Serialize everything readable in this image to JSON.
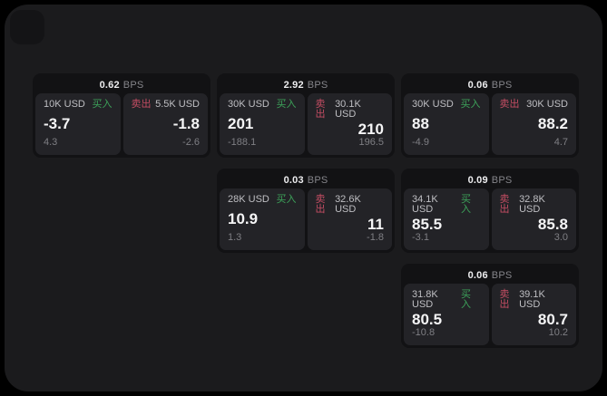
{
  "theme": {
    "outer_bg": "#000000",
    "surface_bg": "#1b1b1d",
    "card_bg": "#121214",
    "panel_bg": "#232327",
    "buy_color": "#3da35a",
    "sell_color": "#c44d63"
  },
  "cards": [
    {
      "bps_value": "0.62",
      "bps_unit": "BPS",
      "grid": {
        "row": 1,
        "col": 1
      },
      "buy": {
        "amount": "10K USD",
        "side_label": "买入",
        "price": "-3.7",
        "change": "4.3"
      },
      "sell": {
        "amount": "5.5K USD",
        "side_label": "卖出",
        "price": "-1.8",
        "change": "-2.6"
      }
    },
    {
      "bps_value": "2.92",
      "bps_unit": "BPS",
      "grid": {
        "row": 1,
        "col": 2
      },
      "buy": {
        "amount": "30K USD",
        "side_label": "买入",
        "price": "201",
        "change": "-188.1"
      },
      "sell": {
        "amount": "30.1K USD",
        "side_label": "卖出",
        "price": "210",
        "change": "196.5"
      }
    },
    {
      "bps_value": "0.06",
      "bps_unit": "BPS",
      "grid": {
        "row": 1,
        "col": 3
      },
      "buy": {
        "amount": "30K USD",
        "side_label": "买入",
        "price": "88",
        "change": "-4.9"
      },
      "sell": {
        "amount": "30K USD",
        "side_label": "卖出",
        "price": "88.2",
        "change": "4.7"
      }
    },
    {
      "bps_value": "0.03",
      "bps_unit": "BPS",
      "grid": {
        "row": 2,
        "col": 2
      },
      "buy": {
        "amount": "28K USD",
        "side_label": "买入",
        "price": "10.9",
        "change": "1.3"
      },
      "sell": {
        "amount": "32.6K USD",
        "side_label": "卖出",
        "price": "11",
        "change": "-1.8"
      }
    },
    {
      "bps_value": "0.09",
      "bps_unit": "BPS",
      "grid": {
        "row": 2,
        "col": 3
      },
      "buy": {
        "amount": "34.1K USD",
        "side_label": "买入",
        "price": "85.5",
        "change": "-3.1"
      },
      "sell": {
        "amount": "32.8K USD",
        "side_label": "卖出",
        "price": "85.8",
        "change": "3.0"
      }
    },
    {
      "bps_value": "0.06",
      "bps_unit": "BPS",
      "grid": {
        "row": 3,
        "col": 3
      },
      "buy": {
        "amount": "31.8K USD",
        "side_label": "买入",
        "price": "80.5",
        "change": "-10.8"
      },
      "sell": {
        "amount": "39.1K USD",
        "side_label": "卖出",
        "price": "80.7",
        "change": "10.2"
      }
    }
  ]
}
